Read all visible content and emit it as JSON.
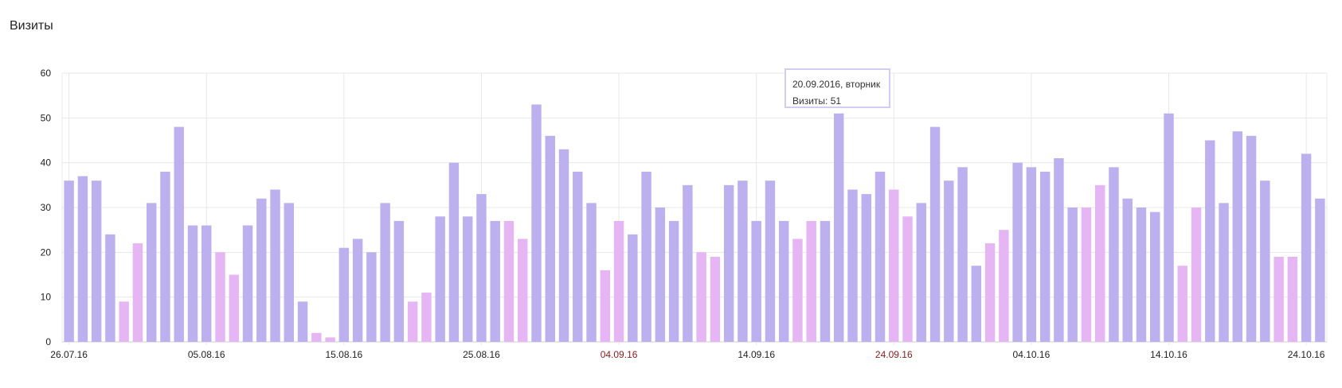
{
  "title": "Визиты",
  "tooltip": {
    "date": "20.09.2016, вторник",
    "label": "Визиты: 51"
  },
  "colors": {
    "weekday": "#bcb0ee",
    "weekend": "#e6b6f4",
    "grid": "#e8e8e8",
    "axis": "#d0d0d0",
    "holiday_label": "#8b1a1a",
    "label": "#222222"
  },
  "chart_data": {
    "type": "bar",
    "title": "Визиты",
    "ylim": [
      0,
      60
    ],
    "yticks": [
      0,
      10,
      20,
      30,
      40,
      50,
      60
    ],
    "grid": true,
    "xtick_labels": [
      {
        "index": 0,
        "label": "26.07.16",
        "highlight": false
      },
      {
        "index": 10,
        "label": "05.08.16",
        "highlight": false
      },
      {
        "index": 20,
        "label": "15.08.16",
        "highlight": false
      },
      {
        "index": 30,
        "label": "25.08.16",
        "highlight": false
      },
      {
        "index": 40,
        "label": "04.09.16",
        "highlight": true
      },
      {
        "index": 50,
        "label": "14.09.16",
        "highlight": false
      },
      {
        "index": 60,
        "label": "24.09.16",
        "highlight": true
      },
      {
        "index": 70,
        "label": "04.10.16",
        "highlight": false
      },
      {
        "index": 80,
        "label": "14.10.16",
        "highlight": false
      },
      {
        "index": 90,
        "label": "24.10.16",
        "highlight": false
      }
    ],
    "values": [
      36,
      37,
      36,
      24,
      9,
      22,
      31,
      38,
      48,
      26,
      26,
      20,
      15,
      26,
      32,
      34,
      31,
      9,
      2,
      1,
      21,
      23,
      20,
      31,
      27,
      9,
      11,
      28,
      40,
      28,
      33,
      27,
      27,
      23,
      53,
      46,
      43,
      38,
      31,
      16,
      27,
      24,
      38,
      30,
      27,
      35,
      20,
      19,
      35,
      36,
      27,
      36,
      27,
      23,
      27,
      27,
      51,
      34,
      33,
      38,
      34,
      28,
      31,
      48,
      36,
      39,
      17,
      22,
      25,
      40,
      39,
      38,
      41,
      30,
      30,
      35,
      39,
      32,
      30,
      29,
      51,
      17,
      30,
      45,
      31,
      47,
      46,
      36,
      19,
      19,
      42,
      32
    ],
    "weekend": [
      0,
      0,
      0,
      0,
      1,
      1,
      0,
      0,
      0,
      0,
      0,
      1,
      1,
      0,
      0,
      0,
      0,
      0,
      1,
      1,
      0,
      0,
      0,
      0,
      0,
      1,
      1,
      0,
      0,
      0,
      0,
      0,
      1,
      1,
      0,
      0,
      0,
      0,
      0,
      1,
      1,
      0,
      0,
      0,
      0,
      0,
      1,
      1,
      0,
      0,
      0,
      0,
      0,
      1,
      1,
      0,
      0,
      0,
      0,
      0,
      1,
      1,
      0,
      0,
      0,
      0,
      0,
      1,
      1,
      0,
      0,
      0,
      0,
      0,
      1,
      1,
      0,
      0,
      0,
      0,
      0,
      1,
      1,
      0,
      0,
      0,
      0,
      0,
      1,
      1,
      0,
      0
    ]
  }
}
